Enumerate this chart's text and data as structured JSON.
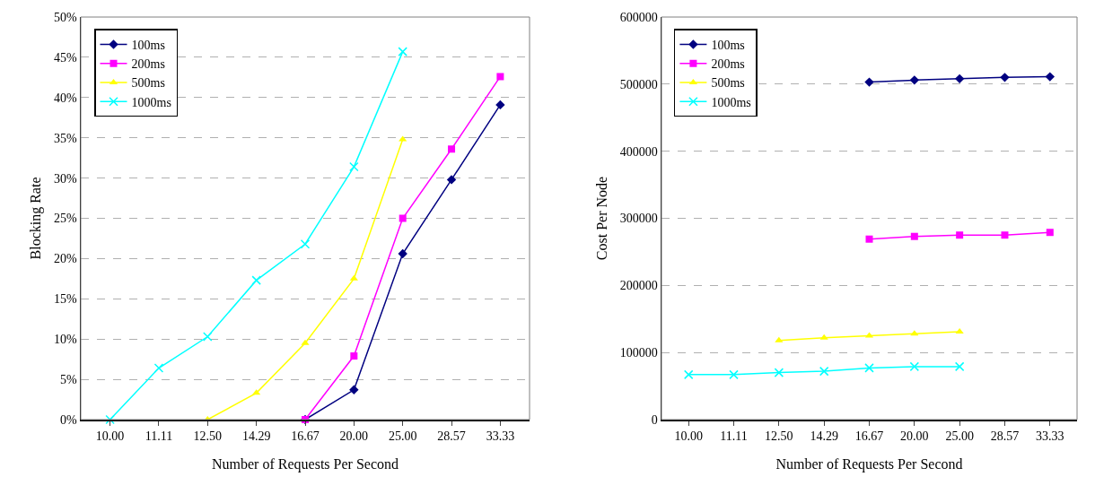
{
  "chart_data": [
    {
      "type": "line",
      "xlabel": "Number of Requests Per Second",
      "ylabel": "Blocking Rate",
      "categories": [
        "10.00",
        "11.11",
        "12.50",
        "14.29",
        "16.67",
        "20.00",
        "25.00",
        "28.57",
        "33.33"
      ],
      "series": [
        {
          "name": "100ms",
          "color": "#000080",
          "marker": "diamond",
          "values": [
            null,
            null,
            null,
            null,
            0,
            3.7,
            20.6,
            29.8,
            39.1
          ]
        },
        {
          "name": "200ms",
          "color": "#ff00ff",
          "marker": "square",
          "values": [
            null,
            null,
            null,
            null,
            0,
            7.9,
            25.0,
            33.6,
            42.6
          ]
        },
        {
          "name": "500ms",
          "color": "#ffff00",
          "marker": "triangle",
          "values": [
            null,
            null,
            0,
            3.3,
            9.5,
            17.5,
            34.8,
            null,
            null
          ]
        },
        {
          "name": "1000ms",
          "color": "#00ffff",
          "marker": "cross",
          "values": [
            0,
            6.4,
            10.3,
            17.3,
            21.8,
            31.4,
            45.7,
            null,
            null
          ]
        }
      ],
      "ylim": [
        0,
        50
      ],
      "yticks": [
        {
          "value": 0,
          "label": "0%"
        },
        {
          "value": 5,
          "label": "5%"
        },
        {
          "value": 10,
          "label": "10%"
        },
        {
          "value": 15,
          "label": "15%"
        },
        {
          "value": 20,
          "label": "20%"
        },
        {
          "value": 25,
          "label": "25%"
        },
        {
          "value": 30,
          "label": "30%"
        },
        {
          "value": 35,
          "label": "35%"
        },
        {
          "value": 40,
          "label": "40%"
        },
        {
          "value": 45,
          "label": "45%"
        },
        {
          "value": 50,
          "label": "50%"
        }
      ],
      "grid": "y",
      "legend": "top left"
    },
    {
      "type": "line",
      "xlabel": "Number of Requests Per Second",
      "ylabel": "Cost Per Node",
      "categories": [
        "10.00",
        "11.11",
        "12.50",
        "14.29",
        "16.67",
        "20.00",
        "25.00",
        "28.57",
        "33.33"
      ],
      "series": [
        {
          "name": "100ms",
          "color": "#000080",
          "marker": "diamond",
          "values": [
            null,
            null,
            null,
            null,
            503000,
            506000,
            508000,
            510000,
            511000
          ]
        },
        {
          "name": "200ms",
          "color": "#ff00ff",
          "marker": "square",
          "values": [
            null,
            null,
            null,
            null,
            269000,
            273000,
            275000,
            275000,
            279000
          ]
        },
        {
          "name": "500ms",
          "color": "#ffff00",
          "marker": "triangle",
          "values": [
            null,
            null,
            118000,
            122000,
            125000,
            128000,
            131000,
            null,
            null
          ]
        },
        {
          "name": "1000ms",
          "color": "#00ffff",
          "marker": "cross",
          "values": [
            67000,
            67000,
            70000,
            72000,
            77000,
            79000,
            79000,
            null,
            null
          ]
        }
      ],
      "ylim": [
        0,
        600000
      ],
      "yticks": [
        0,
        100000,
        200000,
        300000,
        400000,
        500000,
        600000
      ],
      "grid": "y",
      "legend": "top left"
    }
  ]
}
